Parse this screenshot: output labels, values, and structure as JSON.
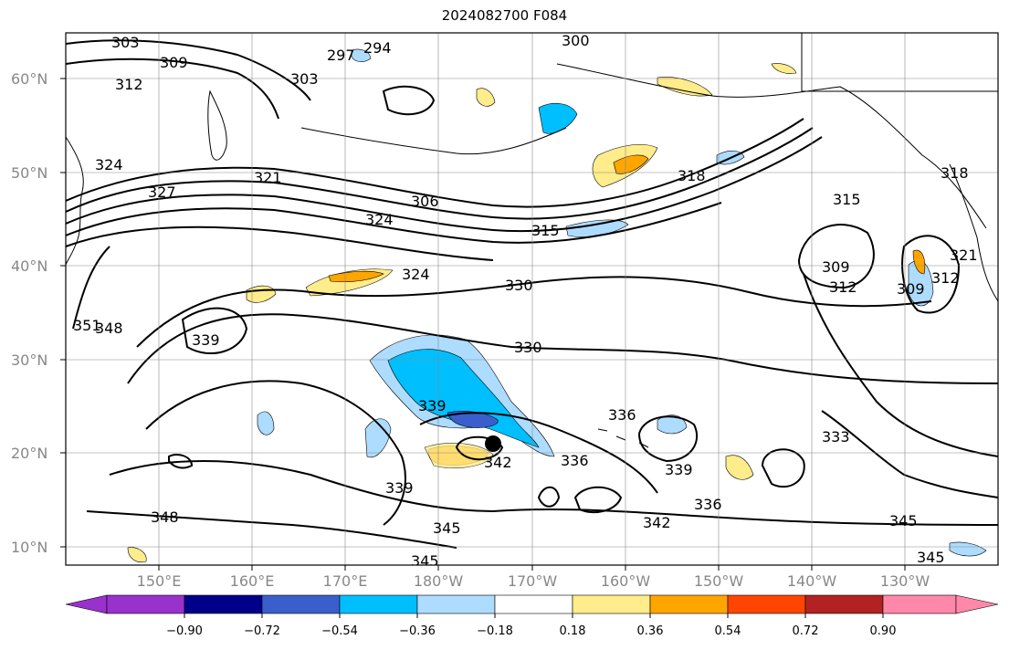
{
  "title": "2024082700 F084",
  "map": {
    "lat_labels": [
      "60°N",
      "50°N",
      "40°N",
      "30°N",
      "20°N",
      "10°N"
    ],
    "lon_labels": [
      "150°E",
      "160°E",
      "170°E",
      "180°W",
      "170°W",
      "160°W",
      "150°W",
      "140°W",
      "130°W"
    ],
    "grid": true,
    "marker": "storm-center-dot"
  },
  "contour_labels": [
    "303",
    "309",
    "297",
    "294",
    "300",
    "303",
    "312",
    "324",
    "327",
    "321",
    "306",
    "324",
    "315",
    "318",
    "315",
    "309",
    "312",
    "309",
    "312",
    "318",
    "321",
    "324",
    "330",
    "330",
    "351",
    "348",
    "339",
    "339",
    "336",
    "336",
    "339",
    "345",
    "348",
    "339",
    "345",
    "342",
    "336",
    "333",
    "345",
    "345",
    "342"
  ],
  "colorbar": {
    "ticks": [
      "−0.90",
      "−0.72",
      "−0.54",
      "−0.36",
      "−0.18",
      "0.18",
      "0.36",
      "0.54",
      "0.72",
      "0.90"
    ],
    "colors": [
      "#9932CC",
      "#00008B",
      "#3A5FCD",
      "#00BFFF",
      "#ADDCFF",
      "#FFFFFF",
      "#FFEC8B",
      "#FFA500",
      "#FF4500",
      "#B22222",
      "#FF88AA"
    ]
  },
  "colors": {
    "contour": "#000000",
    "grid": "#888888"
  }
}
